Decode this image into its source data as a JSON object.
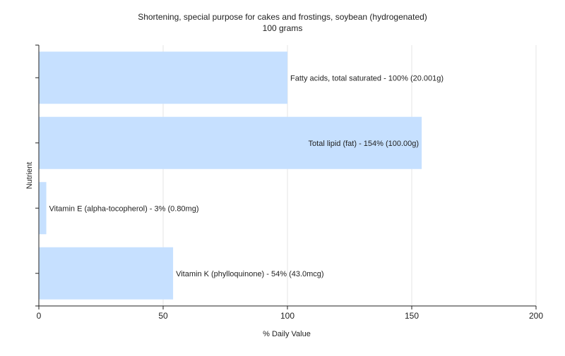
{
  "chart_data": {
    "type": "bar",
    "orientation": "horizontal",
    "title": "Shortening, special purpose for cakes and frostings, soybean (hydrogenated)",
    "subtitle": "100 grams",
    "xlabel": "% Daily Value",
    "ylabel": "Nutrient",
    "xlim": [
      0,
      200
    ],
    "xticks": [
      0,
      50,
      100,
      150,
      200
    ],
    "grid": true,
    "bar_color": "#c6e0ff",
    "categories": [
      "Fatty acids, total saturated",
      "Total lipid (fat)",
      "Vitamin E (alpha-tocopherol)",
      "Vitamin K (phylloquinone)"
    ],
    "values": [
      100,
      154,
      3,
      54
    ],
    "labels": [
      "Fatty acids, total saturated - 100% (20.001g)",
      "Total lipid (fat) - 154% (100.00g)",
      "Vitamin E (alpha-tocopherol) - 3% (0.80mg)",
      "Vitamin K (phylloquinone) - 54% (43.0mcg)"
    ]
  }
}
